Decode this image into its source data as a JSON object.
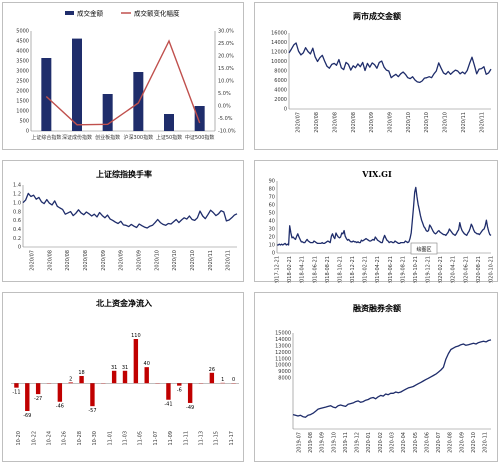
{
  "chart_data": [
    {
      "type": "bar",
      "title": "",
      "categories": [
        "上证综合指数",
        "深证成份指数",
        "创业板指数",
        "沪深300指数",
        "上证50指数",
        "中证500指数"
      ],
      "series": [
        {
          "name": "成交金额",
          "type": "bar",
          "axis": "left",
          "color": "#1f2d6b",
          "values": [
            3650,
            4620,
            1850,
            2950,
            850,
            1250
          ]
        },
        {
          "name": "成交额变化幅度",
          "type": "line",
          "axis": "right",
          "color": "#c0504d",
          "values": [
            3.8,
            -7.5,
            -7.3,
            1.2,
            26.0,
            -6.8
          ]
        }
      ],
      "ylim": [
        0,
        5000
      ],
      "y_ticks": [
        "0",
        "500",
        "1000",
        "1500",
        "2000",
        "2500",
        "3000",
        "3500",
        "4000",
        "4500",
        "5000"
      ],
      "y2lim": [
        -10,
        30
      ],
      "y2_ticks": [
        "-10.0%",
        "-5.0%",
        "0.0%",
        "5.0%",
        "10.0%",
        "15.0%",
        "20.0%",
        "25.0%",
        "30.0%"
      ],
      "legend": "top",
      "grid": false
    },
    {
      "type": "line",
      "title": "两市成交金额",
      "x_ticks": [
        "2020/07",
        "2020/08",
        "2020/08",
        "2020/08",
        "2020/09",
        "2020/09",
        "2020/10",
        "2020/10",
        "2020/10",
        "2020/11",
        "2020/11"
      ],
      "ylim": [
        0,
        16000
      ],
      "y_ticks": [
        "0",
        "2000",
        "4000",
        "6000",
        "8000",
        "10000",
        "12000",
        "14000",
        "16000"
      ],
      "series": [
        {
          "values": [
            11800,
            12600,
            13500,
            13900,
            12200,
            11400,
            11800,
            12900,
            12100,
            11600,
            12800,
            11000,
            10000,
            10800,
            11300,
            10100,
            9000,
            8600,
            9400,
            9600,
            9200,
            10400,
            8700,
            8300,
            9800,
            9400,
            8200,
            9100,
            8700,
            9500,
            8900,
            9800,
            8100,
            9600,
            8800,
            9700,
            9300,
            8600,
            9800,
            10100,
            8800,
            8200,
            8000,
            6600,
            7000,
            7300,
            6800,
            7400,
            7800,
            7300,
            6600,
            6400,
            6800,
            6100,
            5700,
            5600,
            5900,
            6500,
            6600,
            6800,
            6600,
            7400,
            8000,
            9700,
            8600,
            7600,
            7300,
            7900,
            7300,
            7800,
            8200,
            8000,
            7400,
            7800,
            7400,
            8100,
            9600,
            10900,
            9200,
            7400,
            8400,
            8500,
            8900,
            7300,
            7600,
            8400
          ]
        }
      ],
      "color": "#1f2d6b",
      "grid": false
    },
    {
      "type": "line",
      "title": "上证综指换手率",
      "x_ticks": [
        "2020/07",
        "2020/08",
        "2020/08",
        "2020/08",
        "2020/09",
        "2020/09",
        "2020/09",
        "2020/10",
        "2020/10",
        "2020/10",
        "2020/11",
        "2020/11"
      ],
      "ylim": [
        0,
        1.4
      ],
      "y_ticks": [
        "0",
        "0.2",
        "0.4",
        "0.6",
        "0.8",
        "1.0",
        "1.2",
        "1.4"
      ],
      "series": [
        {
          "values": [
            1.0,
            1.06,
            1.21,
            1.14,
            1.17,
            1.08,
            1.12,
            1.02,
            0.98,
            1.07,
            0.99,
            0.95,
            1.04,
            0.92,
            0.88,
            0.85,
            0.74,
            0.77,
            0.8,
            0.71,
            0.76,
            0.84,
            0.77,
            0.73,
            0.79,
            0.75,
            0.7,
            0.74,
            0.68,
            0.78,
            0.71,
            0.66,
            0.72,
            0.63,
            0.6,
            0.56,
            0.53,
            0.58,
            0.5,
            0.49,
            0.46,
            0.51,
            0.47,
            0.44,
            0.52,
            0.48,
            0.45,
            0.43,
            0.47,
            0.49,
            0.55,
            0.62,
            0.55,
            0.51,
            0.49,
            0.53,
            0.52,
            0.57,
            0.62,
            0.55,
            0.61,
            0.66,
            0.63,
            0.7,
            0.62,
            0.6,
            0.66,
            0.81,
            0.7,
            0.64,
            0.73,
            0.83,
            0.78,
            0.71,
            0.75,
            0.82,
            0.79,
            0.59,
            0.61,
            0.66,
            0.72,
            0.75
          ]
        }
      ],
      "color": "#1f2d6b",
      "grid": false
    },
    {
      "type": "line",
      "title": "VIX.GI",
      "x_ticks": [
        "2017-12-21",
        "2018-02-21",
        "2018-04-21",
        "2018-06-21",
        "2018-08-21",
        "2018-10-21",
        "2018-12-21",
        "2019-02-21",
        "2019-04-21",
        "2019-06-21",
        "2019-08-21",
        "2019-10-21",
        "2019-12-21",
        "2020-02-21",
        "2020-04-21",
        "2020-06-21",
        "2020-08-21",
        "2020-10-21"
      ],
      "ylim": [
        0,
        90
      ],
      "y_ticks": [
        "0",
        "10",
        "20",
        "30",
        "40",
        "50",
        "60",
        "70",
        "80",
        "90"
      ],
      "series": [
        {
          "values": [
            10,
            10,
            11,
            10,
            11,
            10,
            11,
            12,
            10,
            11,
            10,
            34,
            25,
            19,
            20,
            18,
            17,
            21,
            24,
            20,
            17,
            14,
            14,
            13,
            13,
            15,
            17,
            15,
            14,
            13,
            13,
            13,
            15,
            14,
            13,
            12,
            12,
            12,
            12,
            13,
            12,
            12,
            13,
            14,
            15,
            14,
            13,
            21,
            24,
            20,
            18,
            25,
            22,
            20,
            19,
            20,
            25,
            24,
            28,
            21,
            18,
            16,
            17,
            15,
            14,
            14,
            15,
            14,
            14,
            13,
            14,
            13,
            13,
            16,
            15,
            16,
            17,
            18,
            17,
            16,
            15,
            15,
            16,
            17,
            16,
            20,
            18,
            16,
            15,
            14,
            13,
            13,
            18,
            22,
            19,
            16,
            15,
            13,
            14,
            14,
            13,
            13,
            15,
            14,
            13,
            12,
            12,
            13,
            13,
            13,
            13,
            15,
            14,
            13,
            14,
            18,
            25,
            40,
            57,
            76,
            82,
            70,
            61,
            54,
            47,
            41,
            37,
            33,
            31,
            28,
            27,
            28,
            35,
            33,
            30,
            27,
            25,
            24,
            25,
            27,
            28,
            26,
            25,
            24,
            23,
            23,
            22,
            24,
            26,
            30,
            28,
            26,
            24,
            23,
            22,
            24,
            27,
            29,
            38,
            32,
            28,
            26,
            24,
            23,
            22,
            25,
            27,
            31,
            36,
            33,
            29,
            26,
            25,
            24,
            24,
            23,
            25,
            27,
            29,
            30,
            34,
            41,
            33,
            27,
            23,
            22
          ]
        }
      ],
      "color": "#1f2d6b",
      "annotation": "绘图区",
      "grid": false
    },
    {
      "type": "bar",
      "title": "北上资金净流入",
      "categories": [
        "10-20",
        "10-21",
        "10-22",
        "10-23",
        "10-26",
        "10-27",
        "10-28",
        "10-29",
        "10-30",
        "11-02",
        "11-03",
        "11-04",
        "11-05",
        "11-06",
        "11-09",
        "11-10",
        "11-11",
        "11-12",
        "11-13",
        "11-16",
        "11-17"
      ],
      "x_ticks": [
        "10-20",
        "10-22",
        "10-24",
        "10-26",
        "10-28",
        "10-30",
        "11-01",
        "11-03",
        "11-05",
        "11-07",
        "11-09",
        "11-11",
        "11-13",
        "11-15",
        "11-17"
      ],
      "values": [
        -11,
        -69,
        -27,
        0,
        -46,
        2,
        18,
        -57,
        0,
        31,
        31,
        110,
        40,
        0,
        -41,
        -6,
        -49,
        0,
        26,
        1,
        0
      ],
      "value_labels": [
        "-11",
        "-69",
        "-27",
        "",
        "-46",
        "2",
        "18",
        "-57",
        "",
        "31",
        "31",
        "110",
        "40",
        "",
        "-41",
        "-6",
        "-49",
        "",
        "26",
        "1",
        "0"
      ],
      "color": "#c00000",
      "grid": false
    },
    {
      "type": "line",
      "title": "融资融券余额",
      "x_ticks": [
        "2019-07",
        "2019-08",
        "2019-09",
        "2019-10",
        "2019-11",
        "2019-12",
        "2020-01",
        "2020-02",
        "2020-03",
        "2020-04",
        "2020-05",
        "2020-06",
        "2020-07",
        "2020-08",
        "2020-09",
        "2020-10",
        "2020-11"
      ],
      "ylim": [
        0,
        15000
      ],
      "y_ticks": [
        "0",
        "1000",
        "2000",
        "3000",
        "4000",
        "5000",
        "6000",
        "7000",
        "8000",
        "9000",
        "10000",
        "11000",
        "12000",
        "13000",
        "14000",
        "15000"
      ],
      "series": [
        {
          "values": [
            9050,
            9000,
            8950,
            9000,
            8900,
            8850,
            9000,
            9050,
            9150,
            9300,
            9450,
            9500,
            9550,
            9600,
            9650,
            9700,
            9600,
            9550,
            9700,
            9750,
            9700,
            9650,
            9800,
            9850,
            9900,
            10000,
            10050,
            9950,
            10000,
            10100,
            10150,
            10250,
            10300,
            10200,
            10350,
            10450,
            10400,
            10550,
            10500,
            10600,
            10600,
            10700,
            10650,
            10700,
            10800,
            10900,
            11000,
            11050,
            11100,
            11200,
            11300,
            11400,
            11500,
            11600,
            11700,
            11800,
            11900,
            12000,
            12150,
            12300,
            12500,
            13100,
            13500,
            13800,
            13900,
            14000,
            14050,
            14150,
            14200,
            14100,
            14150,
            14200,
            14250,
            14200,
            14300,
            14350,
            14400,
            14350,
            14450,
            14500
          ]
        }
      ],
      "color": "#1f2d6b",
      "grid": false
    }
  ]
}
